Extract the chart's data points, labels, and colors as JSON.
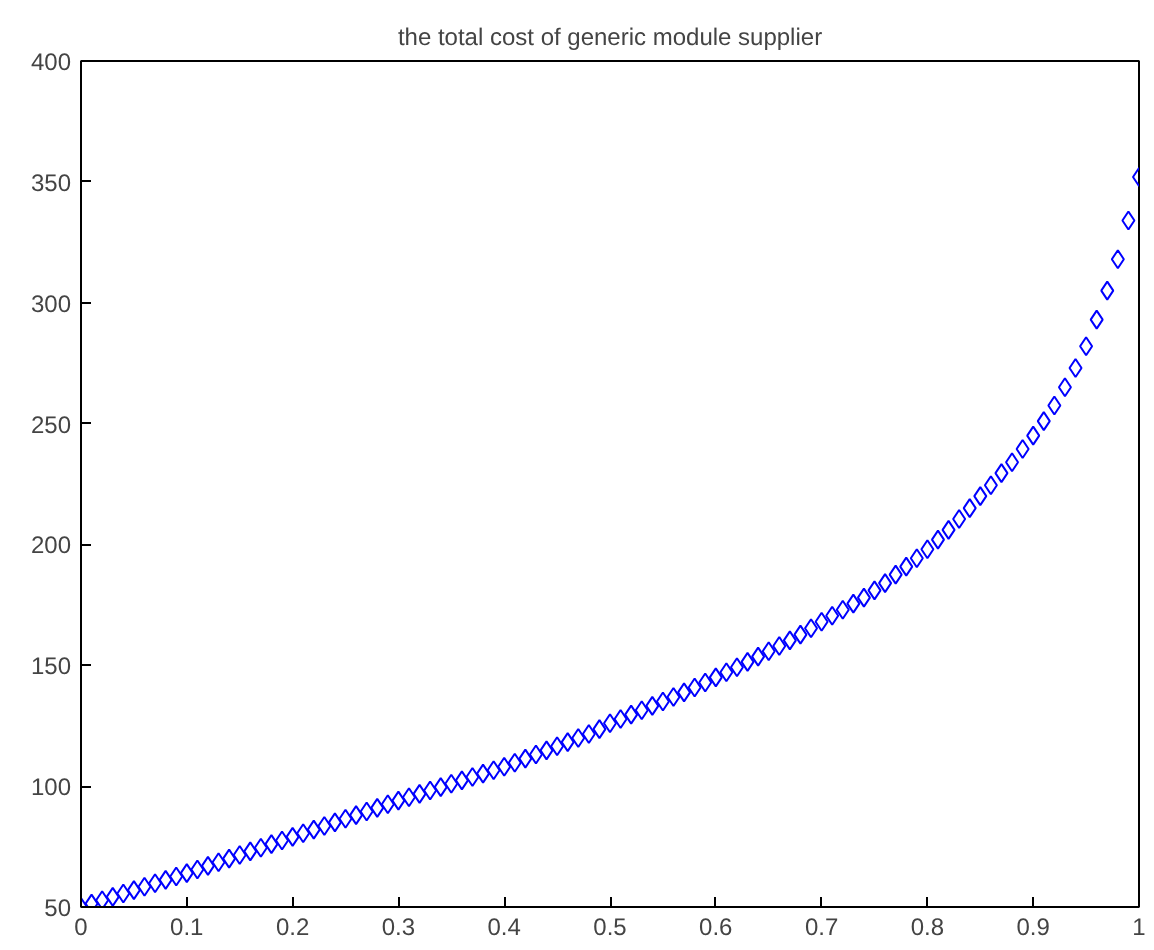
{
  "chart_data": {
    "type": "scatter",
    "title": "the total cost of generic module supplier",
    "x": [
      0,
      0.01,
      0.02,
      0.03,
      0.04,
      0.05,
      0.06,
      0.07,
      0.08,
      0.09,
      0.1,
      0.11,
      0.12,
      0.13,
      0.14,
      0.15,
      0.16,
      0.17,
      0.18,
      0.19,
      0.2,
      0.21,
      0.22,
      0.23,
      0.24,
      0.25,
      0.26,
      0.27,
      0.28,
      0.29,
      0.3,
      0.31,
      0.32,
      0.33,
      0.34,
      0.35,
      0.36,
      0.37,
      0.38,
      0.39,
      0.4,
      0.41,
      0.42,
      0.43,
      0.44,
      0.45,
      0.46,
      0.47,
      0.48,
      0.49,
      0.5,
      0.51,
      0.52,
      0.53,
      0.54,
      0.55,
      0.56,
      0.57,
      0.58,
      0.59,
      0.6,
      0.61,
      0.62,
      0.63,
      0.64,
      0.65,
      0.66,
      0.67,
      0.68,
      0.69,
      0.7,
      0.71,
      0.72,
      0.73,
      0.74,
      0.75,
      0.76,
      0.77,
      0.78,
      0.79,
      0.8,
      0.81,
      0.82,
      0.83,
      0.84,
      0.85,
      0.86,
      0.87,
      0.88,
      0.89,
      0.9,
      0.91,
      0.92,
      0.93,
      0.94,
      0.95,
      0.96,
      0.97,
      0.98,
      0.99,
      1
    ],
    "series": [
      {
        "color": "#0000ff",
        "values": [
          50,
          51.4,
          52.8,
          54.2,
          55.6,
          57,
          58.4,
          59.8,
          61.2,
          62.6,
          64,
          65.5,
          67,
          68.5,
          70,
          71.5,
          73,
          74.5,
          76,
          77.5,
          79,
          80.5,
          82,
          83.5,
          85,
          86.5,
          88,
          89.5,
          91,
          92.5,
          94,
          95.4,
          96.8,
          98.2,
          99.6,
          101,
          102.4,
          103.8,
          105.2,
          106.6,
          108,
          109.7,
          111.4,
          113.1,
          114.8,
          116.5,
          118.2,
          119.9,
          121.6,
          123.6,
          126,
          127.8,
          129.6,
          131.4,
          133.2,
          135,
          136.9,
          138.8,
          140.8,
          142.9,
          145,
          147.1,
          149.2,
          151.4,
          153.6,
          155.8,
          158,
          160.3,
          162.7,
          165.3,
          168,
          170.5,
          173,
          175.5,
          178,
          181,
          184,
          187.5,
          190.8,
          194.3,
          198,
          202,
          206,
          210.5,
          215,
          220,
          224.5,
          229.5,
          234,
          239.5,
          245,
          251,
          257.5,
          265,
          273,
          282,
          293,
          305,
          318,
          334,
          352
        ]
      }
    ],
    "marker": "diamond",
    "xlim": [
      0,
      1
    ],
    "ylim": [
      50,
      400
    ],
    "xticks": [
      0,
      0.1,
      0.2,
      0.3,
      0.4,
      0.5,
      0.6,
      0.7,
      0.8,
      0.9,
      1
    ],
    "yticks": [
      50,
      100,
      150,
      200,
      250,
      300,
      350,
      400
    ],
    "grid": false
  }
}
